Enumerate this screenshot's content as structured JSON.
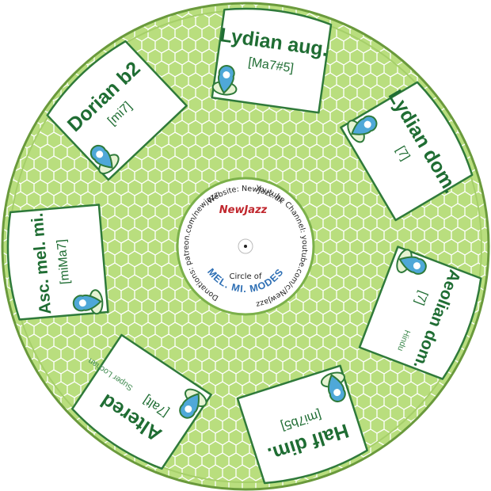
{
  "colors": {
    "disc_fill": "#b6dc7a",
    "disc_stroke": "#6a9a3c",
    "pattern_stroke": "#ffffff",
    "box_stroke": "#2f7a3a",
    "label_green": "#1f6d33",
    "pin_fill": "#4fa8d8",
    "pin_ring": "#2f7a3a",
    "brand_red": "#c0262d",
    "modes_blue": "#2e6fb4"
  },
  "center": {
    "website": "Website: NewJazz.dk",
    "youtube": "Youtube Channel: youtube.com/c/NewJazz",
    "donations": "Donations: patreon.com/newjazz",
    "brand": "NewJazz",
    "circle_of": "Circle of",
    "modes_title": "MEL. MI. MODES"
  },
  "modes": [
    {
      "title": "Lydian aug.",
      "chord": "[Ma7#5]",
      "alias": ""
    },
    {
      "title": "Lydian dom.",
      "chord": "[7]",
      "alias": ""
    },
    {
      "title": "Aeolian dom.",
      "chord": "[7]",
      "alias": "Hindu"
    },
    {
      "title": "Half dim.",
      "chord": "[mi7b5]",
      "alias": ""
    },
    {
      "title": "Altered",
      "chord": "[7alt]",
      "alias": "Super Locrian"
    },
    {
      "title": "Asc. mel. mi.",
      "chord": "[miMa7]",
      "alias": ""
    },
    {
      "title": "Dorian b2",
      "chord": "[mi7]",
      "alias": ""
    }
  ]
}
